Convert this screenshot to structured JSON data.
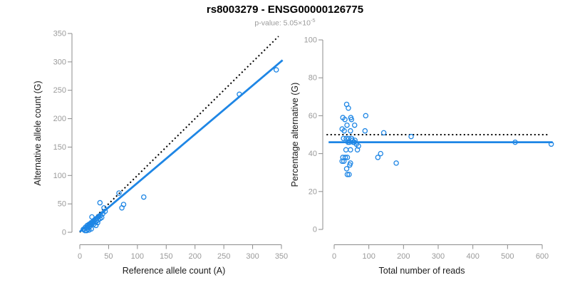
{
  "header": {
    "title": "rs8003279 - ENSG00000126775",
    "p_value_text": "p-value: 5.05×10",
    "p_value_exponent": "-5"
  },
  "colors": {
    "accent": "#1E86E5",
    "reference_line": "#000000",
    "axis": "#8c8c8c",
    "tick_label": "#9a9a9a",
    "axis_title": "#1a1a1a",
    "subtitle": "#9a9a9a"
  },
  "chart_data": [
    {
      "type": "scatter",
      "name": "allele-counts",
      "xlabel": "Reference allele count (A)",
      "ylabel": "Alternative allele count (G)",
      "xlim": [
        0,
        350
      ],
      "ylim": [
        0,
        350
      ],
      "xticks": [
        0,
        50,
        100,
        150,
        200,
        250,
        300,
        350
      ],
      "yticks": [
        0,
        50,
        100,
        150,
        200,
        250,
        300,
        350
      ],
      "grid": false,
      "points": [
        [
          6,
          5
        ],
        [
          8,
          6
        ],
        [
          9,
          3
        ],
        [
          10,
          9
        ],
        [
          12,
          8
        ],
        [
          12,
          3
        ],
        [
          13,
          12
        ],
        [
          14,
          6
        ],
        [
          15,
          11
        ],
        [
          16,
          14
        ],
        [
          16,
          4
        ],
        [
          17,
          10
        ],
        [
          18,
          15
        ],
        [
          19,
          13
        ],
        [
          20,
          17
        ],
        [
          20,
          6
        ],
        [
          21,
          27
        ],
        [
          22,
          16
        ],
        [
          23,
          19
        ],
        [
          24,
          14
        ],
        [
          25,
          21
        ],
        [
          26,
          18
        ],
        [
          27,
          23
        ],
        [
          28,
          12
        ],
        [
          29,
          20
        ],
        [
          30,
          25
        ],
        [
          31,
          17
        ],
        [
          32,
          22
        ],
        [
          33,
          28
        ],
        [
          35,
          24
        ],
        [
          36,
          30
        ],
        [
          38,
          26
        ],
        [
          40,
          33
        ],
        [
          44,
          37
        ],
        [
          35,
          52
        ],
        [
          42,
          43
        ],
        [
          68,
          69
        ],
        [
          73,
          43
        ],
        [
          76,
          49
        ],
        [
          111,
          62
        ],
        [
          277,
          243
        ],
        [
          341,
          286
        ]
      ],
      "lines": [
        {
          "name": "identity-line",
          "style": "dotted",
          "color": "#000000",
          "from": [
            0,
            0
          ],
          "to": [
            345,
            345
          ]
        },
        {
          "name": "fit-line",
          "style": "solid",
          "color": "#1E86E5",
          "from": [
            0,
            1
          ],
          "to": [
            352,
            303
          ]
        }
      ]
    },
    {
      "type": "scatter",
      "name": "percentage-alternative",
      "xlabel": "Total number of reads",
      "ylabel": "Percentage alternative (G)",
      "xlim": [
        0,
        600
      ],
      "ylim": [
        0,
        100
      ],
      "xticks": [
        0,
        100,
        200,
        300,
        400,
        500,
        600
      ],
      "yticks": [
        0,
        20,
        40,
        60,
        80,
        100
      ],
      "grid": false,
      "points": [
        [
          36,
          66
        ],
        [
          41,
          64
        ],
        [
          91,
          60
        ],
        [
          25,
          59
        ],
        [
          31,
          58
        ],
        [
          48,
          59
        ],
        [
          50,
          58
        ],
        [
          37,
          55
        ],
        [
          59,
          55
        ],
        [
          23,
          53
        ],
        [
          29,
          52
        ],
        [
          47,
          52
        ],
        [
          89,
          52
        ],
        [
          143,
          51
        ],
        [
          222,
          49
        ],
        [
          27,
          48
        ],
        [
          35,
          48
        ],
        [
          42,
          48
        ],
        [
          50,
          48
        ],
        [
          52,
          47
        ],
        [
          60,
          47
        ],
        [
          44,
          46
        ],
        [
          40,
          46
        ],
        [
          55,
          46
        ],
        [
          58,
          46
        ],
        [
          64,
          45
        ],
        [
          70,
          44
        ],
        [
          67,
          42
        ],
        [
          47,
          42
        ],
        [
          34,
          42
        ],
        [
          25,
          38
        ],
        [
          32,
          38
        ],
        [
          38,
          38
        ],
        [
          126,
          38
        ],
        [
          134,
          40
        ],
        [
          179,
          35
        ],
        [
          23,
          36
        ],
        [
          28,
          36
        ],
        [
          47,
          35
        ],
        [
          45,
          34
        ],
        [
          36,
          32
        ],
        [
          38,
          29
        ],
        [
          43,
          29
        ],
        [
          522,
          46
        ],
        [
          626,
          45
        ]
      ],
      "lines": [
        {
          "name": "expected-50pct-line",
          "style": "dotted",
          "color": "#000000",
          "from": [
            -22,
            50
          ],
          "to": [
            615,
            50
          ]
        },
        {
          "name": "fit-line",
          "style": "solid",
          "color": "#1E86E5",
          "from": [
            -16,
            46
          ],
          "to": [
            630,
            46
          ]
        }
      ]
    }
  ]
}
